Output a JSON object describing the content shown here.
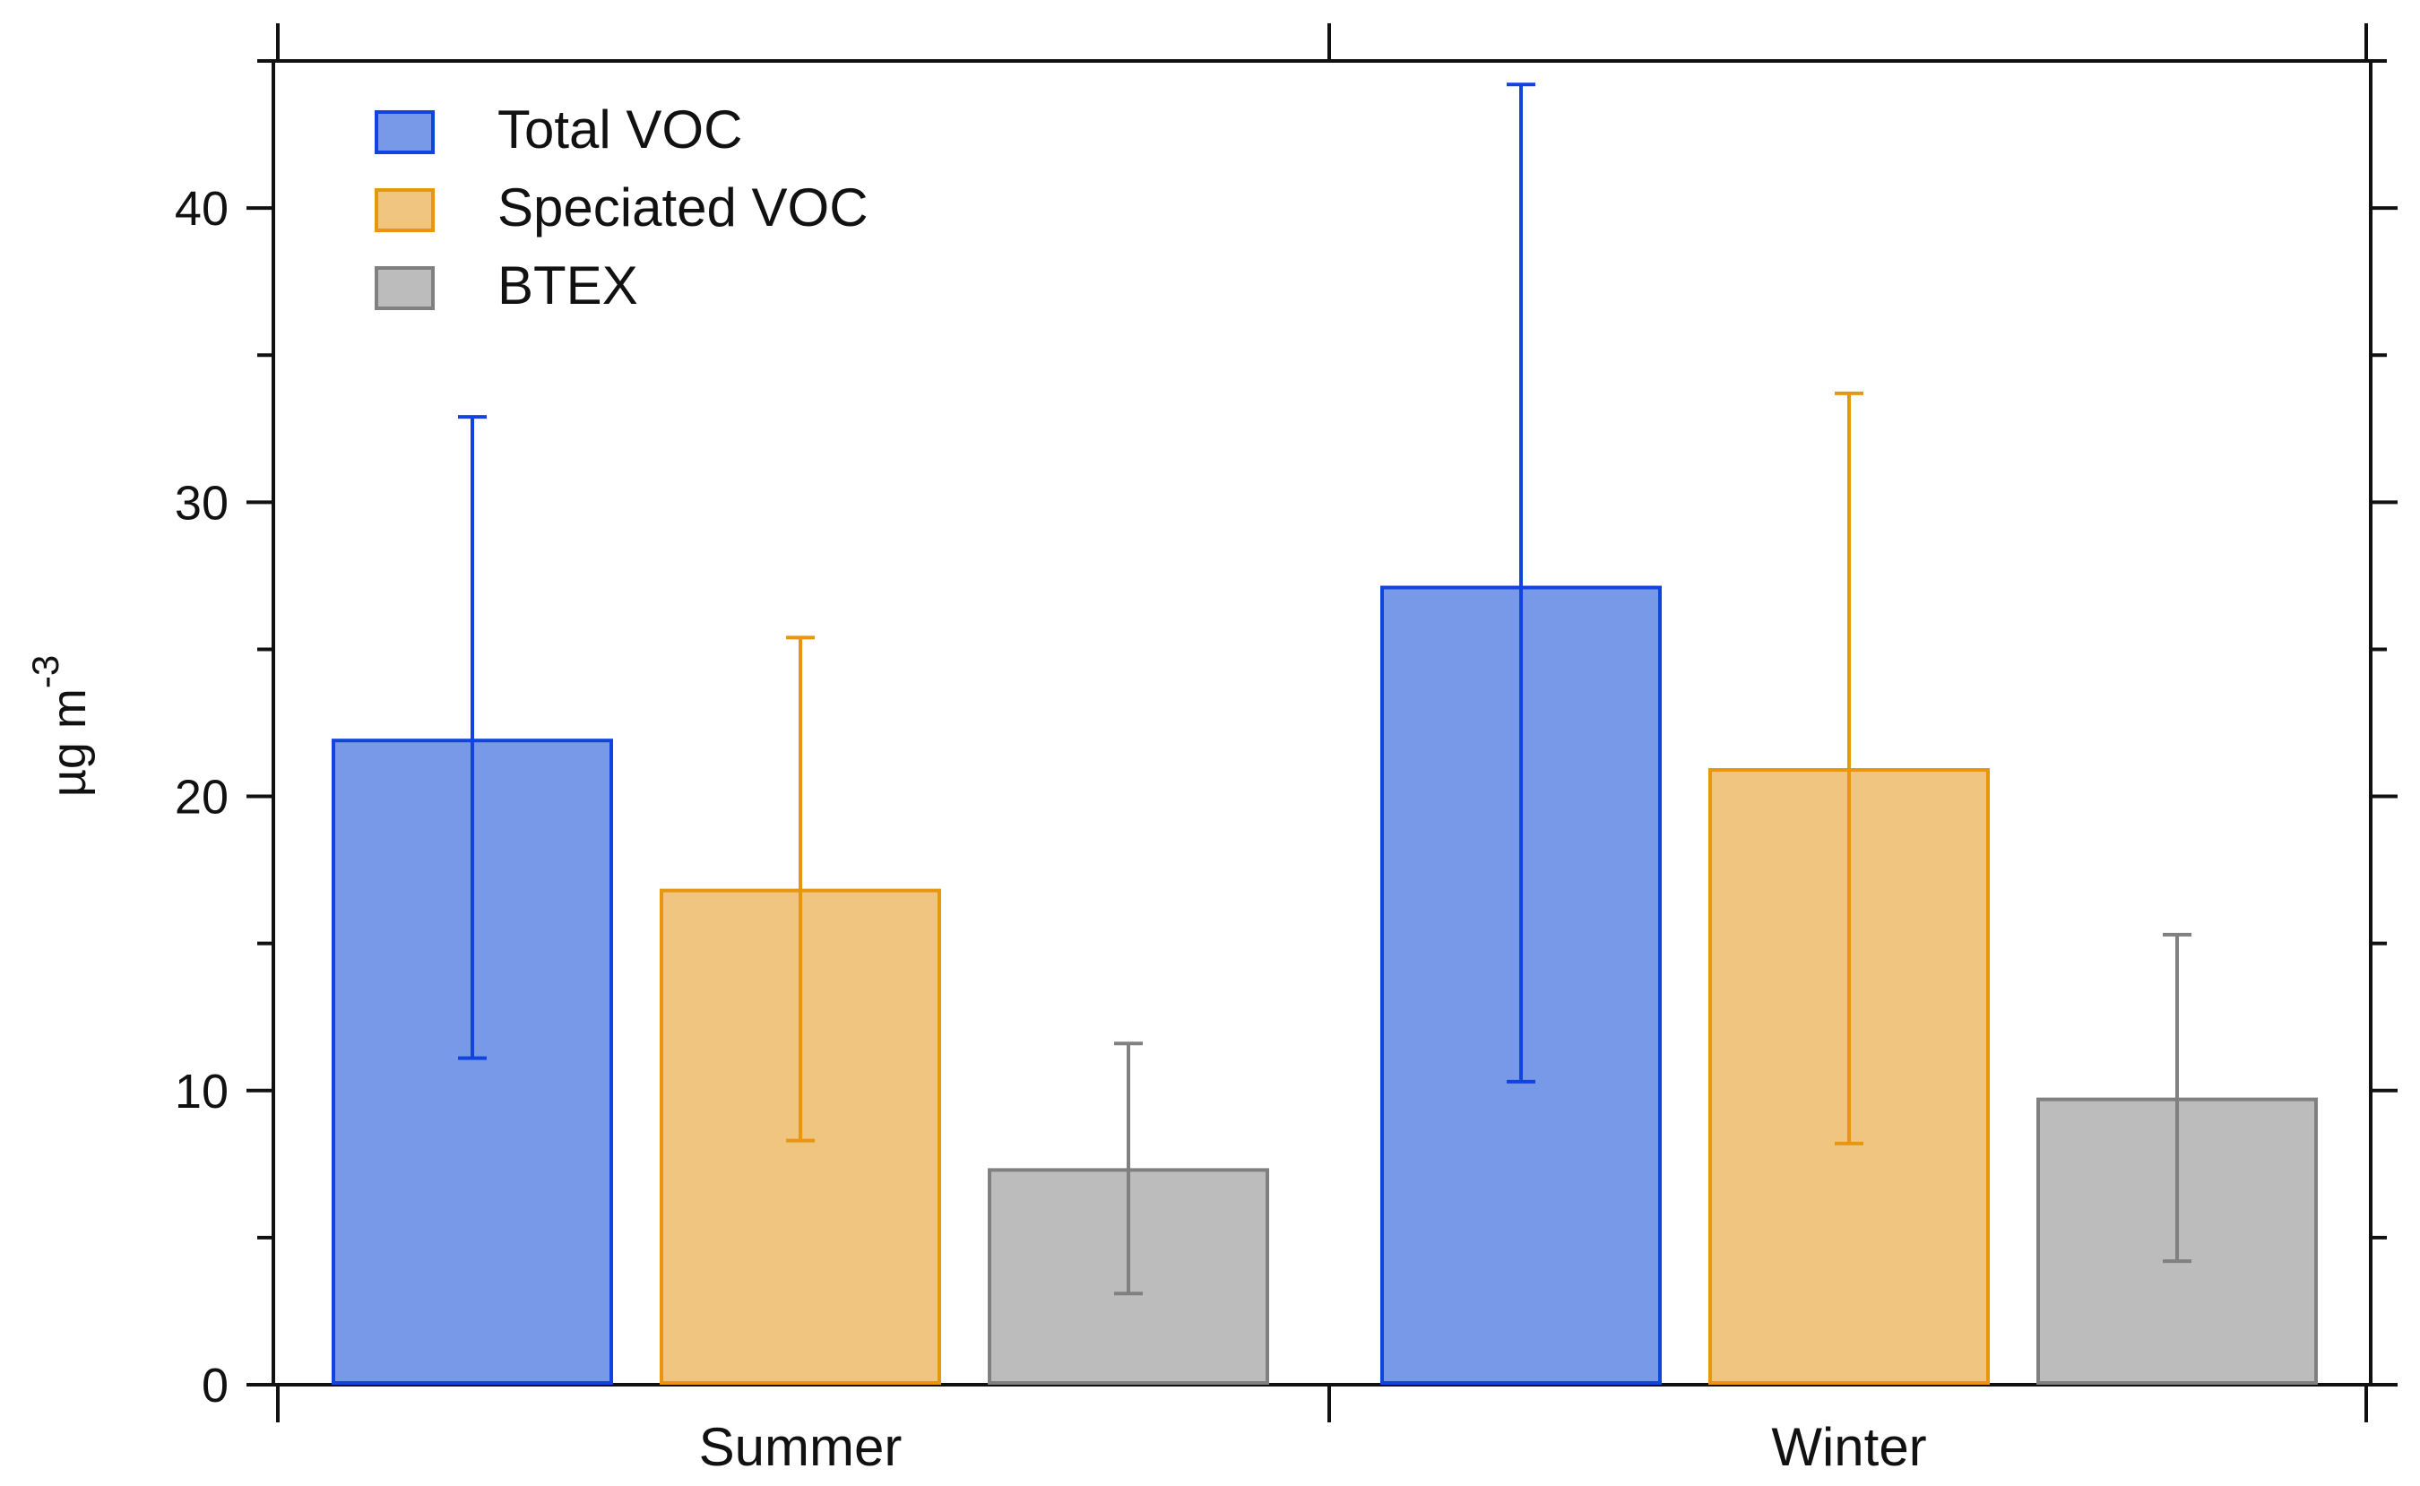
{
  "chart_data": {
    "type": "bar",
    "title": "",
    "xlabel": "",
    "ylabel": "µg m",
    "ylabel_superscript": "-3",
    "ylim": [
      0,
      45
    ],
    "yticks": [
      0,
      10,
      20,
      30,
      40
    ],
    "categories": [
      "Summer",
      "Winter"
    ],
    "legend_position": "top-left",
    "series": [
      {
        "name": "Total VOC",
        "values": [
          21.9,
          27.1
        ],
        "err_low": [
          11.1,
          10.3
        ],
        "err_high": [
          32.9,
          44.2
        ],
        "fill": "#7799e8",
        "stroke": "#1144dd"
      },
      {
        "name": "Speciated VOC",
        "values": [
          16.8,
          20.9
        ],
        "err_low": [
          8.3,
          8.2
        ],
        "err_high": [
          25.4,
          33.7
        ],
        "fill": "#f0c57f",
        "stroke": "#e8960f"
      },
      {
        "name": "BTEX",
        "values": [
          7.3,
          9.7
        ],
        "err_low": [
          3.1,
          4.2
        ],
        "err_high": [
          11.6,
          15.3
        ],
        "fill": "#bcbcbc",
        "stroke": "#808080"
      }
    ]
  }
}
